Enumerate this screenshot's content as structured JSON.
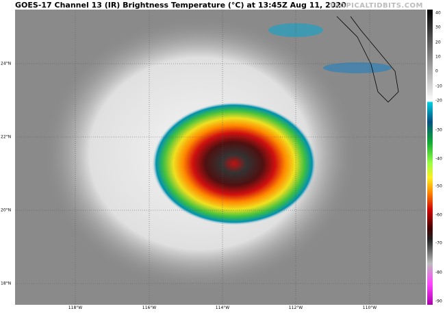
{
  "header": {
    "title": "GOES-17 Channel 13 (IR) Brightness Temperature (°C) at 13:45Z Aug 11, 2020",
    "watermark": "TROPICALTIDBITS.COM"
  },
  "latitude_labels": [
    "24°N",
    "22°N",
    "20°N",
    "18°N"
  ],
  "longitude_labels": [
    "118°W",
    "116°W",
    "114°W",
    "112°W",
    "110°W"
  ],
  "colorbar": {
    "ticks": [
      "40",
      "30",
      "20",
      "10",
      "0",
      "-10",
      "-20",
      "-30",
      "-40",
      "-50",
      "-60",
      "-70",
      "-80",
      "-90"
    ]
  }
}
